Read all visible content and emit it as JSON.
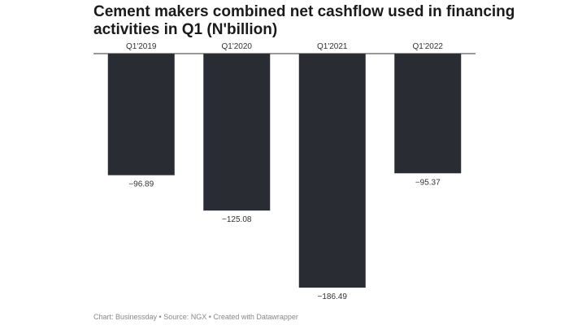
{
  "chart_data": {
    "type": "bar",
    "title": "Cement makers combined net cashflow used in financing activities in Q1 (N'billion)",
    "categories": [
      "Q1'2019",
      "Q1'2020",
      "Q1'2021",
      "Q1'2022"
    ],
    "values": [
      -96.89,
      -125.08,
      -186.49,
      -95.37
    ],
    "value_labels": [
      "−96.89",
      "−125.08",
      "−186.49",
      "−95.37"
    ],
    "xlabel": "",
    "ylabel": "",
    "ylim": [
      -190,
      0
    ],
    "grid": false,
    "bar_color": "#292c33",
    "axis_color": "#333333"
  },
  "footer": {
    "credit": "Chart: Businessday • Source: NGX • Created with Datawrapper"
  }
}
